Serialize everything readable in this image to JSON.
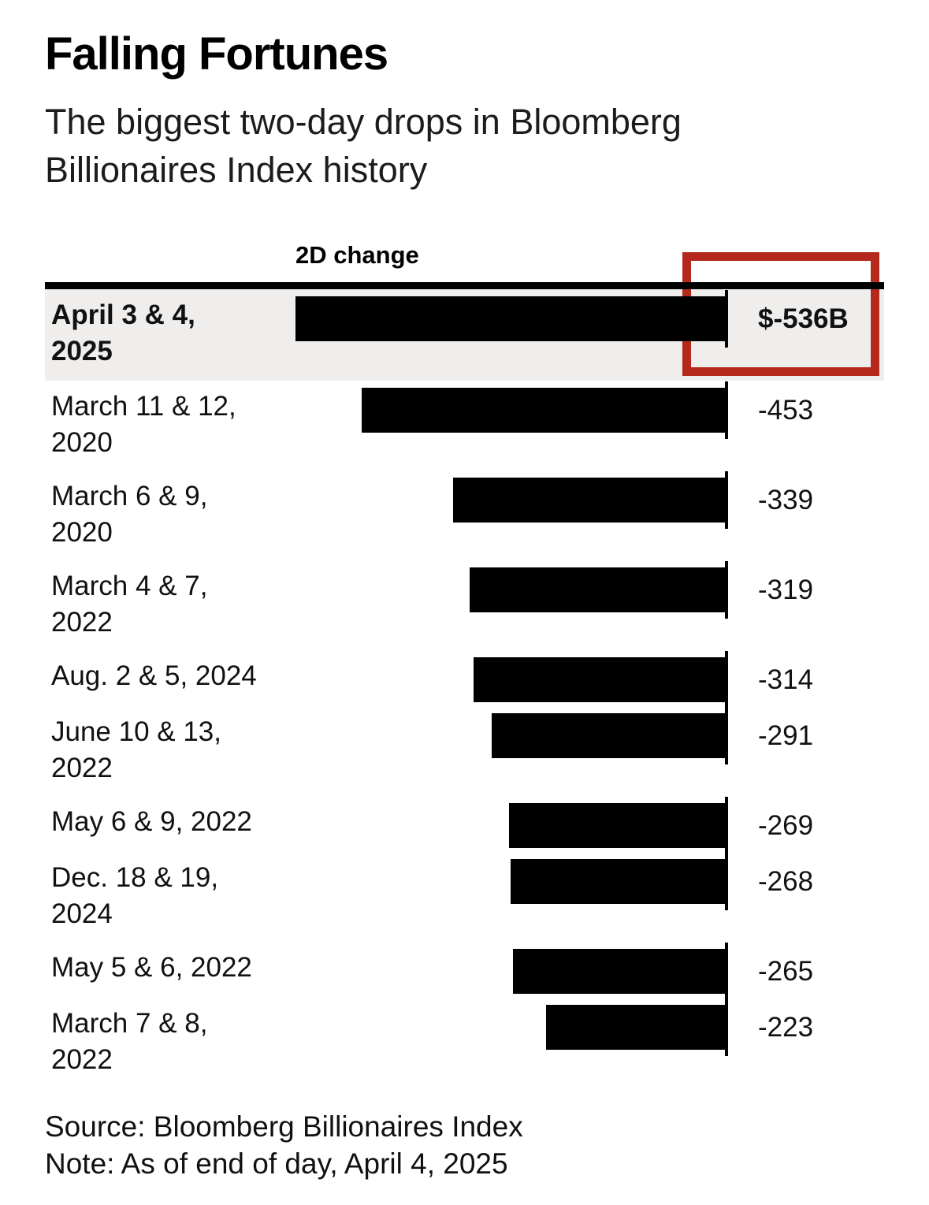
{
  "header": {
    "title": "Falling Fortunes",
    "subtitle": "The biggest two-day drops in Bloomberg Billionaires Index history"
  },
  "chart": {
    "column_header": "2D change",
    "axis_max": 536,
    "rows": [
      {
        "label_lines": [
          "April 3 & 4,",
          "2025"
        ],
        "value": -536,
        "value_label": "$-536B",
        "highlighted": true
      },
      {
        "label_lines": [
          "March 11 & 12,",
          "2020"
        ],
        "value": -453,
        "value_label": "-453",
        "highlighted": false
      },
      {
        "label_lines": [
          "March 6 & 9,",
          "2020"
        ],
        "value": -339,
        "value_label": "-339",
        "highlighted": false
      },
      {
        "label_lines": [
          "March 4 & 7,",
          "2022"
        ],
        "value": -319,
        "value_label": "-319",
        "highlighted": false
      },
      {
        "label_lines": [
          "Aug. 2 & 5, 2024"
        ],
        "value": -314,
        "value_label": "-314",
        "highlighted": false
      },
      {
        "label_lines": [
          "June 10 & 13,",
          "2022"
        ],
        "value": -291,
        "value_label": "-291",
        "highlighted": false
      },
      {
        "label_lines": [
          "May 6 & 9, 2022"
        ],
        "value": -269,
        "value_label": "-269",
        "highlighted": false
      },
      {
        "label_lines": [
          "Dec. 18 & 19,",
          "2024"
        ],
        "value": -268,
        "value_label": "-268",
        "highlighted": false
      },
      {
        "label_lines": [
          "May 5 & 6, 2022"
        ],
        "value": -265,
        "value_label": "-265",
        "highlighted": false
      },
      {
        "label_lines": [
          "March 7 & 8,",
          "2022"
        ],
        "value": -223,
        "value_label": "-223",
        "highlighted": false
      }
    ]
  },
  "chart_data": {
    "type": "bar",
    "orientation": "horizontal",
    "title": "Falling Fortunes",
    "subtitle": "The biggest two-day drops in Bloomberg Billionaires Index history",
    "xlabel": "2D change",
    "value_unit": "billions of US dollars",
    "xlim": [
      -536,
      0
    ],
    "grid": false,
    "legend": "none",
    "categories": [
      "April 3 & 4, 2025",
      "March 11 & 12, 2020",
      "March 6 & 9, 2020",
      "March 4 & 7, 2022",
      "Aug. 2 & 5, 2024",
      "June 10 & 13, 2022",
      "May 6 & 9, 2022",
      "Dec. 18 & 19, 2024",
      "May 5 & 6, 2022",
      "March 7 & 8, 2022"
    ],
    "values": [
      -536,
      -453,
      -339,
      -319,
      -314,
      -291,
      -269,
      -268,
      -265,
      -223
    ],
    "data_labels": [
      "$-536B",
      "-453",
      "-339",
      "-319",
      "-314",
      "-291",
      "-269",
      "-268",
      "-265",
      "-223"
    ],
    "highlighted_category": "April 3 & 4, 2025",
    "annotation": "red rectangle drawn around the $-536B value of the highlighted top row"
  },
  "colors": {
    "bar": "#000000",
    "highlight_row_background": "#efeeec",
    "annotation_red": "#b5291d",
    "text": "#111111"
  },
  "footer": {
    "source": "Source: Bloomberg Billionaires Index",
    "note": "Note: As of end of day, April 4, 2025"
  }
}
